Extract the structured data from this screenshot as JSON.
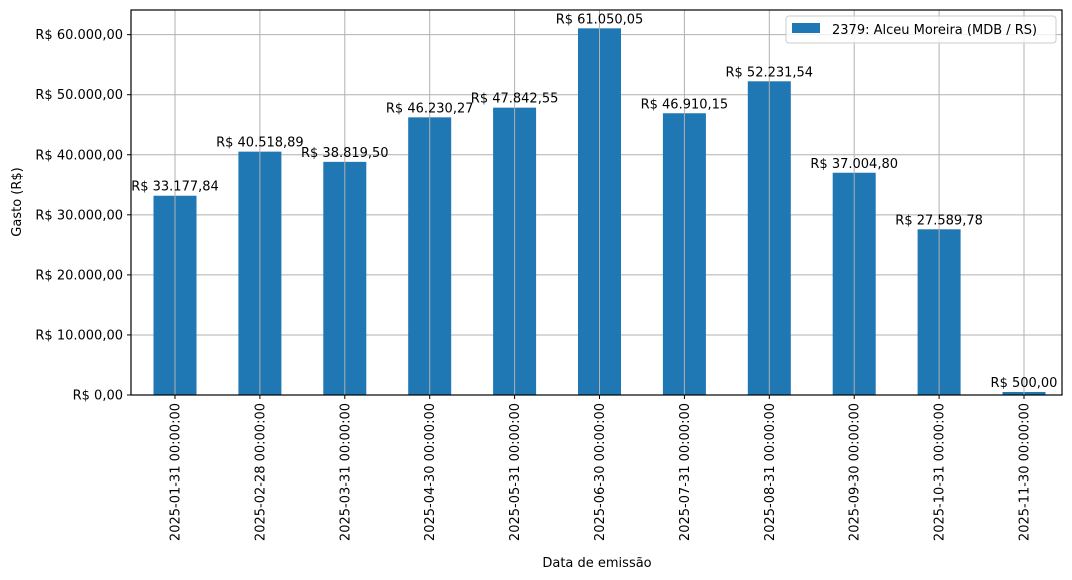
{
  "chart_data": {
    "type": "bar",
    "title": "",
    "xlabel": "Data de emissão",
    "ylabel": "Gasto (R$)",
    "ylim": [
      0,
      64103
    ],
    "grid": true,
    "legend_position": "upper right",
    "categories": [
      "2025-01-31 00:00:00",
      "2025-02-28 00:00:00",
      "2025-03-31 00:00:00",
      "2025-04-30 00:00:00",
      "2025-05-31 00:00:00",
      "2025-06-30 00:00:00",
      "2025-07-31 00:00:00",
      "2025-08-31 00:00:00",
      "2025-09-30 00:00:00",
      "2025-10-31 00:00:00",
      "2025-11-30 00:00:00"
    ],
    "series": [
      {
        "name": "2379: Alceu Moreira (MDB / RS)",
        "color": "#1f77b4",
        "values": [
          33177.84,
          40518.89,
          38819.5,
          46230.27,
          47842.55,
          61050.05,
          46910.15,
          52231.54,
          37004.8,
          27589.78,
          500.0
        ],
        "labels": [
          "R$ 33.177,84",
          "R$ 40.518,89",
          "R$ 38.819,50",
          "R$ 46.230,27",
          "R$ 47.842,55",
          "R$ 61.050,05",
          "R$ 46.910,15",
          "R$ 52.231,54",
          "R$ 37.004,80",
          "R$ 27.589,78",
          "R$ 500,00"
        ]
      }
    ],
    "yticks": [
      0,
      10000,
      20000,
      30000,
      40000,
      50000,
      60000
    ],
    "ytick_labels": [
      "R$ 0,00",
      "R$ 10.000,00",
      "R$ 20.000,00",
      "R$ 30.000,00",
      "R$ 40.000,00",
      "R$ 50.000,00",
      "R$ 60.000,00"
    ]
  },
  "colors": {
    "bar": "#1f77b4",
    "grid": "#b0b0b0",
    "axis": "#000000",
    "legend_border": "#cccccc"
  }
}
